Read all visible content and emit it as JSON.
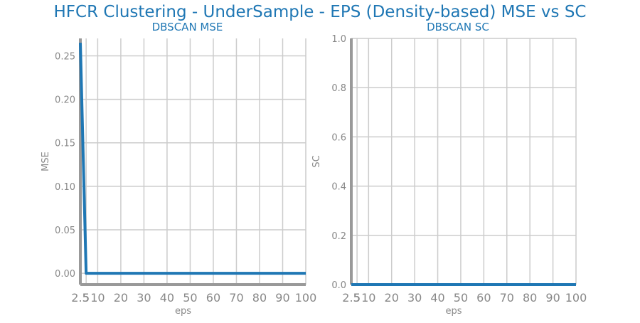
{
  "figure": {
    "title": "HFCR Clustering - UnderSample - EPS (Density-based) MSE vs SC",
    "title_color": "#1f77b4"
  },
  "chart_data": [
    {
      "type": "line",
      "title": "DBSCAN MSE",
      "xlabel": "eps",
      "ylabel": "MSE",
      "x": [
        2.5,
        5,
        10,
        20,
        30,
        40,
        50,
        60,
        70,
        80,
        90,
        100
      ],
      "xticks": [
        "2.5",
        "5",
        "10",
        "20",
        "30",
        "40",
        "50",
        "60",
        "70",
        "80",
        "90",
        "100"
      ],
      "xlim": [
        2.5,
        100
      ],
      "yticks": [
        "0.00",
        "0.05",
        "0.10",
        "0.15",
        "0.20",
        "0.25"
      ],
      "ylim": [
        -0.013,
        0.27
      ],
      "grid": true,
      "series": [
        {
          "values": [
            0.265,
            0.0,
            0.0,
            0.0,
            0.0,
            0.0,
            0.0,
            0.0,
            0.0,
            0.0,
            0.0,
            0.0
          ],
          "color": "#1f77b4"
        }
      ]
    },
    {
      "type": "line",
      "title": "DBSCAN SC",
      "xlabel": "eps",
      "ylabel": "SC",
      "x": [
        2.5,
        5,
        10,
        20,
        30,
        40,
        50,
        60,
        70,
        80,
        90,
        100
      ],
      "xticks": [
        "2.5",
        "5",
        "10",
        "20",
        "30",
        "40",
        "50",
        "60",
        "70",
        "80",
        "90",
        "100"
      ],
      "xlim": [
        2.5,
        100
      ],
      "yticks": [
        "0.0",
        "0.2",
        "0.4",
        "0.6",
        "0.8",
        "1.0"
      ],
      "ylim": [
        0.0,
        1.0
      ],
      "grid": true,
      "series": [
        {
          "values": [
            0.0,
            0.0,
            0.0,
            0.0,
            0.0,
            0.0,
            0.0,
            0.0,
            0.0,
            0.0,
            0.0,
            0.0
          ],
          "color": "#1f77b4"
        }
      ]
    }
  ],
  "colors": {
    "title": "#1f77b4",
    "axis": "#999999",
    "grid": "#cccccc",
    "tick_label": "#888888",
    "line": "#1f77b4"
  }
}
